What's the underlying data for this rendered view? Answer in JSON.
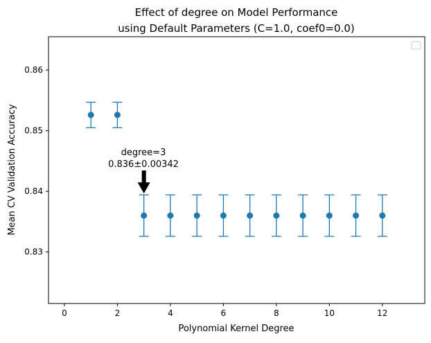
{
  "chart_data": {
    "type": "scatter",
    "title": "Effect of degree on Model Performance",
    "subtitle": "using Default Parameters (C=1.0, coef0=0.0)",
    "xlabel": "Polynomial Kernel Degree",
    "ylabel": "Mean CV Validation Accuracy",
    "xlim": [
      -0.6,
      13.6
    ],
    "ylim": [
      0.8215,
      0.8655
    ],
    "xticks": [
      "0",
      "2",
      "4",
      "6",
      "8",
      "10",
      "12"
    ],
    "xtick_values": [
      0,
      2,
      4,
      6,
      8,
      10,
      12
    ],
    "yticks": [
      "0.83",
      "0.84",
      "0.85",
      "0.86"
    ],
    "ytick_values": [
      0.83,
      0.84,
      0.85,
      0.86
    ],
    "grid": false,
    "legend": "upper right (empty)",
    "color": "#1f77b4",
    "series": [
      {
        "x": [
          1,
          2,
          3,
          4,
          5,
          6,
          7,
          8,
          9,
          10,
          11,
          12
        ],
        "y": [
          0.8526,
          0.8526,
          0.836,
          0.836,
          0.836,
          0.836,
          0.836,
          0.836,
          0.836,
          0.836,
          0.836,
          0.836
        ],
        "err": [
          0.0021,
          0.0021,
          0.00342,
          0.00342,
          0.00342,
          0.00342,
          0.00342,
          0.00342,
          0.00342,
          0.00342,
          0.00342,
          0.00342
        ]
      }
    ],
    "annotation": {
      "line1": "degree=3",
      "line2": "0.836±0.00342",
      "x": 3,
      "y": 0.8393
    }
  }
}
